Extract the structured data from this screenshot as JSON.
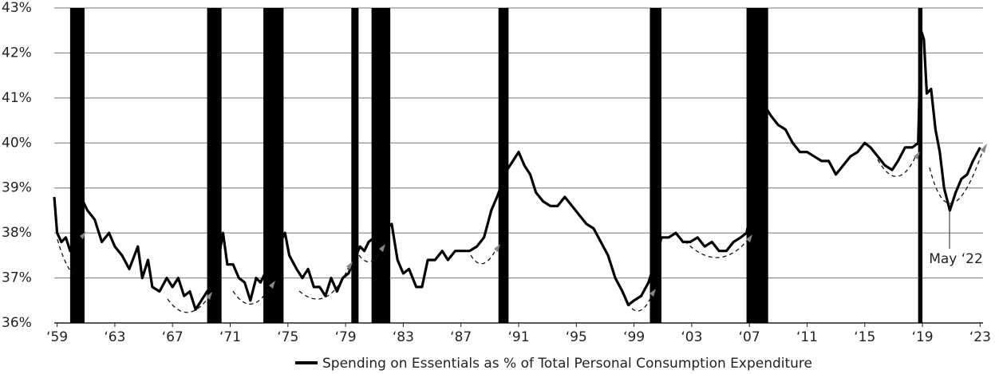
{
  "chart_data": {
    "type": "line",
    "legend": "Spending on Essentials as % of Total Personal Consumption Expenditure",
    "annotation": "May ‘22",
    "xlim": [
      1958.8,
      2023.2
    ],
    "ylim": [
      36,
      43
    ],
    "xticks": [
      {
        "value": 1959,
        "label": "‘59"
      },
      {
        "value": 1963,
        "label": "‘63"
      },
      {
        "value": 1967,
        "label": "‘67"
      },
      {
        "value": 1971,
        "label": "‘71"
      },
      {
        "value": 1975,
        "label": "‘75"
      },
      {
        "value": 1979,
        "label": "‘79"
      },
      {
        "value": 1983,
        "label": "‘83"
      },
      {
        "value": 1987,
        "label": "‘87"
      },
      {
        "value": 1991,
        "label": "‘91"
      },
      {
        "value": 1995,
        "label": "‘95"
      },
      {
        "value": 1999,
        "label": "‘99"
      },
      {
        "value": 2003,
        "label": "‘03"
      },
      {
        "value": 2007,
        "label": "‘07"
      },
      {
        "value": 2011,
        "label": "‘11"
      },
      {
        "value": 2015,
        "label": "‘15"
      },
      {
        "value": 2019,
        "label": "‘19"
      },
      {
        "value": 2023,
        "label": "‘23"
      }
    ],
    "yticks": [
      {
        "value": 36,
        "label": "36%"
      },
      {
        "value": 37,
        "label": "37%"
      },
      {
        "value": 38,
        "label": "38%"
      },
      {
        "value": 39,
        "label": "39%"
      },
      {
        "value": 40,
        "label": "40%"
      },
      {
        "value": 41,
        "label": "41%"
      },
      {
        "value": 42,
        "label": "42%"
      },
      {
        "value": 43,
        "label": "43%"
      }
    ],
    "grid": true,
    "recessions": [
      [
        1959.9,
        1960.9
      ],
      [
        1969.4,
        1970.4
      ],
      [
        1973.3,
        1974.7
      ],
      [
        1979.4,
        1979.9
      ],
      [
        1980.8,
        1982.1
      ],
      [
        1989.6,
        1990.3
      ],
      [
        2000.1,
        2000.9
      ],
      [
        2006.8,
        2008.3
      ],
      [
        2018.7,
        2019.0
      ]
    ],
    "recession_color": "#000000",
    "series": [
      {
        "name": "Spending on Essentials as % of Total Personal Consumption Expenditure",
        "color": "#000000",
        "x": [
          1958.8,
          1959.0,
          1959.3,
          1959.6,
          1959.9,
          1960.3,
          1960.8,
          1961.1,
          1961.6,
          1962.1,
          1962.6,
          1963.0,
          1963.5,
          1964.0,
          1964.6,
          1964.9,
          1965.3,
          1965.6,
          1966.1,
          1966.6,
          1967.0,
          1967.4,
          1967.8,
          1968.2,
          1968.6,
          1969.0,
          1969.4,
          1969.9,
          1970.5,
          1970.8,
          1971.2,
          1971.6,
          1972.0,
          1972.4,
          1972.8,
          1973.1,
          1974.8,
          1975.1,
          1975.6,
          1976.0,
          1976.4,
          1976.8,
          1977.2,
          1977.6,
          1978.0,
          1978.4,
          1978.8,
          1979.2,
          1980.0,
          1980.3,
          1980.6,
          1982.2,
          1982.6,
          1983.0,
          1983.4,
          1983.9,
          1984.3,
          1984.7,
          1985.2,
          1985.7,
          1986.1,
          1986.6,
          1987.1,
          1987.6,
          1988.1,
          1988.6,
          1989.1,
          1989.5,
          1990.2,
          1990.6,
          1991.0,
          1991.4,
          1991.8,
          1992.2,
          1992.7,
          1993.2,
          1993.7,
          1994.2,
          1994.7,
          1995.2,
          1995.7,
          1996.2,
          1996.7,
          1997.2,
          1997.7,
          1998.2,
          1998.6,
          1999.0,
          1999.5,
          2000.0,
          2000.5,
          2000.9,
          2001.4,
          2001.9,
          2002.4,
          2002.9,
          2003.4,
          2003.9,
          2004.4,
          2004.9,
          2005.4,
          2005.9,
          2006.4,
          2006.8,
          2007.5,
          2008.1,
          2008.5,
          2009.0,
          2009.5,
          2010.0,
          2010.5,
          2011.0,
          2011.5,
          2012.0,
          2012.5,
          2013.0,
          2013.5,
          2014.0,
          2014.5,
          2015.0,
          2015.4,
          2015.9,
          2016.4,
          2016.9,
          2017.3,
          2017.8,
          2018.3,
          2018.7,
          2018.9,
          2019.1,
          2019.3,
          2019.6,
          2019.9,
          2020.2,
          2020.5,
          2020.9,
          2021.3,
          2021.7,
          2022.1,
          2022.5,
          2023.0
        ],
        "values": [
          38.8,
          38.0,
          37.8,
          37.9,
          37.6,
          38.0,
          38.7,
          38.5,
          38.3,
          37.8,
          38.0,
          37.7,
          37.5,
          37.2,
          37.7,
          37.0,
          37.4,
          36.8,
          36.7,
          37.0,
          36.8,
          37.0,
          36.6,
          36.7,
          36.3,
          36.5,
          36.7,
          36.9,
          38.0,
          37.3,
          37.3,
          37.0,
          36.9,
          36.5,
          37.0,
          36.9,
          38.0,
          37.5,
          37.2,
          37.0,
          37.2,
          36.8,
          36.8,
          36.6,
          37.0,
          36.7,
          37.0,
          37.1,
          37.7,
          37.6,
          37.8,
          38.2,
          37.4,
          37.1,
          37.2,
          36.8,
          36.8,
          37.4,
          37.4,
          37.6,
          37.4,
          37.6,
          37.6,
          37.6,
          37.7,
          37.9,
          38.5,
          38.8,
          39.4,
          39.6,
          39.8,
          39.5,
          39.3,
          38.9,
          38.7,
          38.6,
          38.6,
          38.8,
          38.6,
          38.4,
          38.2,
          38.1,
          37.8,
          37.5,
          37.0,
          36.7,
          36.4,
          36.5,
          36.6,
          36.9,
          37.4,
          37.9,
          37.9,
          38.0,
          37.8,
          37.8,
          37.9,
          37.7,
          37.8,
          37.6,
          37.6,
          37.8,
          37.9,
          38.0,
          39.0,
          40.8,
          40.6,
          40.4,
          40.3,
          40.0,
          39.8,
          39.8,
          39.7,
          39.6,
          39.6,
          39.3,
          39.5,
          39.7,
          39.8,
          40.0,
          39.9,
          39.7,
          39.5,
          39.4,
          39.6,
          39.9,
          39.9,
          40.0,
          42.5,
          42.3,
          41.1,
          41.2,
          40.3,
          39.8,
          39.0,
          38.5,
          38.9,
          39.2,
          39.3,
          39.6,
          39.9
        ]
      }
    ]
  }
}
